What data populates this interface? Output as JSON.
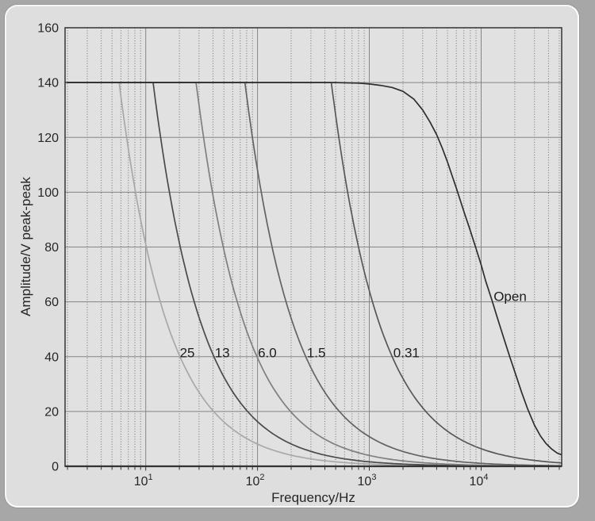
{
  "chart_data": {
    "type": "line",
    "title": "",
    "xlabel": "Frequency/Hz",
    "ylabel": "Amplitude/V peak-peak",
    "x_scale": "log",
    "xlim": [
      1.9,
      52500
    ],
    "ylim": [
      0,
      160
    ],
    "yticks": [
      0,
      20,
      40,
      60,
      80,
      100,
      120,
      140,
      160
    ],
    "xticks_major": [
      {
        "value": 10,
        "base": "10",
        "exp": "1"
      },
      {
        "value": 100,
        "base": "10",
        "exp": "2"
      },
      {
        "value": 1000,
        "base": "10",
        "exp": "3"
      },
      {
        "value": 10000,
        "base": "10",
        "exp": "4"
      }
    ],
    "grid": {
      "major": "solid",
      "minor_x": "dotted",
      "minor_y": "none"
    },
    "series": [
      {
        "name": "load-25",
        "label": "25",
        "model": "slew_limit",
        "plateau_v": 140,
        "k_v_hz": 810,
        "corner_hz": 5.8,
        "color": "#a8a8a8",
        "label_at": {
          "f": 19.2,
          "a": 41.5
        }
      },
      {
        "name": "load-13",
        "label": "13",
        "model": "slew_limit",
        "plateau_v": 140,
        "k_v_hz": 1630,
        "corner_hz": 11.6,
        "color": "#4a4a4a",
        "label_at": {
          "f": 39.5,
          "a": 41.5
        }
      },
      {
        "name": "load-6.0",
        "label": "6.0",
        "model": "slew_limit",
        "plateau_v": 140,
        "k_v_hz": 3950,
        "corner_hz": 28.2,
        "color": "#7f7f7f",
        "label_at": {
          "f": 96,
          "a": 41.5
        }
      },
      {
        "name": "load-1.5",
        "label": "1.5",
        "model": "slew_limit",
        "plateau_v": 140,
        "k_v_hz": 10800,
        "corner_hz": 77,
        "color": "#636363",
        "label_at": {
          "f": 263,
          "a": 41.5
        }
      },
      {
        "name": "load-0.31",
        "label": "0.31",
        "model": "slew_limit",
        "plateau_v": 140,
        "k_v_hz": 64000,
        "corner_hz": 457,
        "color": "#585858",
        "label_at": {
          "f": 1560,
          "a": 41.5
        }
      },
      {
        "name": "open",
        "label": "Open",
        "model": "points",
        "color": "#2e2e2e",
        "label_at": {
          "f": 12300,
          "a": 62
        },
        "points": [
          [
            2,
            140
          ],
          [
            200,
            140
          ],
          [
            500,
            140
          ],
          [
            800,
            139.8
          ],
          [
            1000,
            139.5
          ],
          [
            1250,
            139
          ],
          [
            1600,
            138.2
          ],
          [
            2000,
            136.8
          ],
          [
            2500,
            134
          ],
          [
            3000,
            130
          ],
          [
            3500,
            125.5
          ],
          [
            4000,
            121
          ],
          [
            4500,
            116
          ],
          [
            5000,
            111
          ],
          [
            5500,
            106
          ],
          [
            6000,
            101.5
          ],
          [
            7000,
            93
          ],
          [
            8000,
            86
          ],
          [
            9000,
            79.5
          ],
          [
            10000,
            73.5
          ],
          [
            11000,
            67.5
          ],
          [
            12500,
            60.5
          ],
          [
            14000,
            54
          ],
          [
            16000,
            46.5
          ],
          [
            18000,
            40
          ],
          [
            20000,
            34.5
          ],
          [
            23000,
            27
          ],
          [
            26000,
            21
          ],
          [
            30000,
            15
          ],
          [
            34000,
            11
          ],
          [
            38000,
            8.3
          ],
          [
            43000,
            6.2
          ],
          [
            48000,
            4.8
          ],
          [
            52500,
            4.2
          ]
        ]
      }
    ],
    "legend_position": "inline-curve-labels",
    "colors": {
      "page_bg": "#a7a7a7",
      "card_bg": "#dedede",
      "plot_bg": "#e1e1e1",
      "grid_major": "#858585",
      "grid_minor": "#6f6f6f",
      "axis": "#333333",
      "text": "#262626"
    }
  }
}
